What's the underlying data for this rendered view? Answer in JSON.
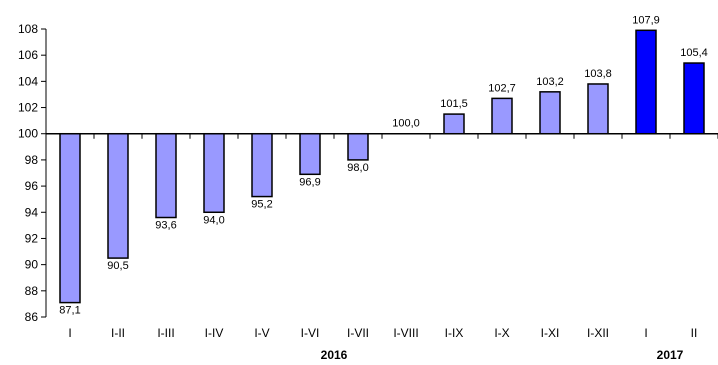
{
  "chart_data": {
    "type": "bar",
    "baseline": 100,
    "ylim": [
      86,
      108
    ],
    "yticks": [
      86,
      88,
      90,
      92,
      94,
      96,
      98,
      100,
      102,
      104,
      106,
      108
    ],
    "categories": [
      "I",
      "I-II",
      "I-III",
      "I-IV",
      "I-V",
      "I-VI",
      "I-VII",
      "I-VIII",
      "I-IX",
      "I-X",
      "I-XI",
      "I-XII",
      "I",
      "II"
    ],
    "values": [
      87.1,
      90.5,
      93.6,
      94.0,
      95.2,
      96.9,
      98.0,
      100.0,
      101.5,
      102.7,
      103.2,
      103.8,
      107.9,
      105.4
    ],
    "value_labels": [
      "87,1",
      "90,5",
      "93,6",
      "94,0",
      "95,2",
      "96,9",
      "98,0",
      "100,0",
      "101,5",
      "102,7",
      "103,2",
      "103,8",
      "107,9",
      "105,4"
    ],
    "groups": [
      {
        "label": "2016",
        "start": 0,
        "end": 11,
        "color": "#9999ff"
      },
      {
        "label": "2017",
        "start": 12,
        "end": 13,
        "color": "#0000ff"
      }
    ],
    "grid": false,
    "legend": "none"
  }
}
